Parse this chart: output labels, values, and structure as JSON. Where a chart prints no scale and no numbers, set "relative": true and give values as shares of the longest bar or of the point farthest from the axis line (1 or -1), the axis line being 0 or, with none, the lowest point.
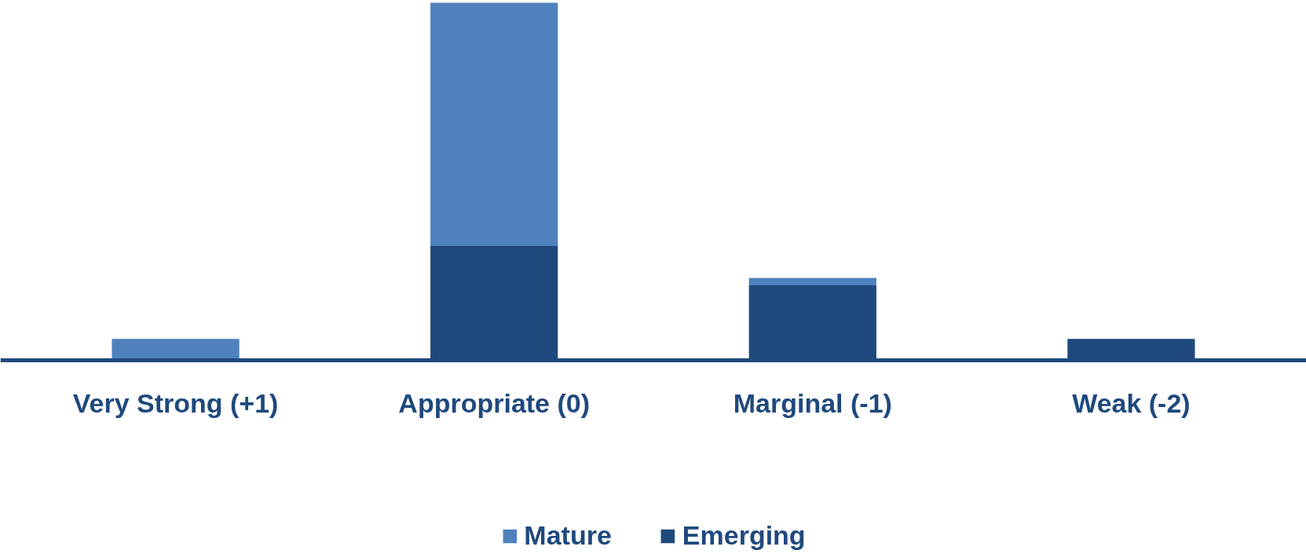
{
  "chart_data": {
    "type": "bar",
    "relative": true,
    "stacked": true,
    "categories": [
      "Very Strong (+1)",
      "Appropriate (0)",
      "Marginal (-1)",
      "Weak (-2)"
    ],
    "series": [
      {
        "name": "Emerging",
        "color": "#1f497d",
        "values": [
          0,
          0.32,
          0.21,
          0.06
        ]
      },
      {
        "name": "Mature",
        "color": "#4f81bd",
        "values": [
          0.06,
          0.68,
          0.02,
          0
        ]
      }
    ],
    "legend": "bottom"
  }
}
